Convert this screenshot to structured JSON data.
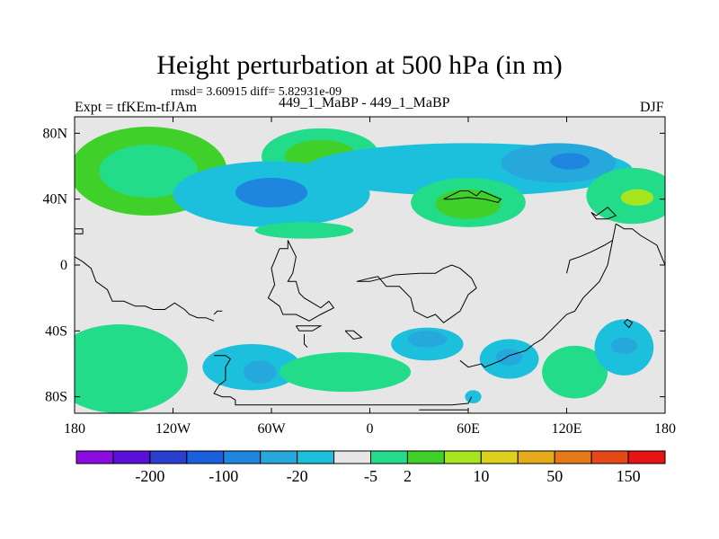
{
  "title": "Height perturbation at 500 hPa (in m)",
  "stats": "rmsd= 3.60915 diff= 5.82931e-09",
  "left_label": "Expt = tfKEm-tfJAm",
  "center_label": "449_1_MaBP - 449_1_MaBP",
  "right_label": "DJF",
  "chart_data": {
    "type": "heatmap",
    "projection": "cylindrical-equidistant",
    "xlim": [
      -180,
      180
    ],
    "ylim": [
      -90,
      90
    ],
    "x_ticks": [
      {
        "value": -180,
        "label": "180"
      },
      {
        "value": -120,
        "label": "120W"
      },
      {
        "value": -60,
        "label": "60W"
      },
      {
        "value": 0,
        "label": "0"
      },
      {
        "value": 60,
        "label": "60E"
      },
      {
        "value": 120,
        "label": "120E"
      },
      {
        "value": 180,
        "label": "180"
      }
    ],
    "y_ticks": [
      {
        "value": 80,
        "label": "80N"
      },
      {
        "value": 40,
        "label": "40N"
      },
      {
        "value": 0,
        "label": "0"
      },
      {
        "value": -40,
        "label": "40S"
      },
      {
        "value": -80,
        "label": "80S"
      }
    ],
    "background_color": "#e6e6e6",
    "colorbar": {
      "colors": [
        "#8a0ce0",
        "#5a10d8",
        "#2a3fcf",
        "#1a60dc",
        "#1f86e0",
        "#26a8dc",
        "#1cc0dc",
        "#e6e6e6",
        "#22dc8a",
        "#40d02a",
        "#a6e61e",
        "#dcd21e",
        "#e6aa1a",
        "#e67818",
        "#e64818",
        "#e61414"
      ],
      "labels": [
        {
          "after_box": 2,
          "text": "-200"
        },
        {
          "after_box": 4,
          "text": "-100"
        },
        {
          "after_box": 6,
          "text": "-20"
        },
        {
          "after_box": 8,
          "text": "-5"
        },
        {
          "after_box": 9,
          "text": "2"
        },
        {
          "after_box": 11,
          "text": "10"
        },
        {
          "after_box": 13,
          "text": "50"
        },
        {
          "after_box": 15,
          "text": "150"
        }
      ]
    },
    "anomalies": [
      {
        "lon": -135,
        "lat": 57,
        "rlon": 48,
        "rlat": 27,
        "level": 2
      },
      {
        "lon": -135,
        "lat": 57,
        "rlon": 30,
        "rlat": 16,
        "level": 1
      },
      {
        "lon": -30,
        "lat": 66,
        "rlon": 36,
        "rlat": 17,
        "level": 1
      },
      {
        "lon": -30,
        "lat": 66,
        "rlon": 22,
        "rlat": 10,
        "level": 2
      },
      {
        "lon": -60,
        "lat": 43,
        "rlon": 60,
        "rlat": 20,
        "level": -1
      },
      {
        "lon": -60,
        "lat": 44,
        "rlon": 22,
        "rlat": 9,
        "level": -3
      },
      {
        "lon": 60,
        "lat": 58,
        "rlon": 100,
        "rlat": 16,
        "level": -1
      },
      {
        "lon": 115,
        "lat": 62,
        "rlon": 35,
        "rlat": 12,
        "level": -2
      },
      {
        "lon": 122,
        "lat": 63,
        "rlon": 12,
        "rlat": 5,
        "level": -3
      },
      {
        "lon": 60,
        "lat": 38,
        "rlon": 35,
        "rlat": 15,
        "level": 1
      },
      {
        "lon": 60,
        "lat": 37,
        "rlon": 20,
        "rlat": 9,
        "level": 2
      },
      {
        "lon": 160,
        "lat": 42,
        "rlon": 28,
        "rlat": 17,
        "level": 1
      },
      {
        "lon": 163,
        "lat": 41,
        "rlon": 10,
        "rlat": 5,
        "level": 3
      },
      {
        "lon": -40,
        "lat": 21,
        "rlon": 30,
        "rlat": 5,
        "level": 1
      },
      {
        "lon": -153,
        "lat": -63,
        "rlon": 42,
        "rlat": 27,
        "level": 1
      },
      {
        "lon": -72,
        "lat": -62,
        "rlon": 30,
        "rlat": 14,
        "level": -1
      },
      {
        "lon": -67,
        "lat": -65,
        "rlon": 10,
        "rlat": 7,
        "level": -2
      },
      {
        "lon": 35,
        "lat": -48,
        "rlon": 22,
        "rlat": 10,
        "level": -1
      },
      {
        "lon": 35,
        "lat": -45,
        "rlon": 12,
        "rlat": 5,
        "level": -2
      },
      {
        "lon": -15,
        "lat": -65,
        "rlon": 40,
        "rlat": 12,
        "level": 1
      },
      {
        "lon": 85,
        "lat": -57,
        "rlon": 18,
        "rlat": 12,
        "level": -1
      },
      {
        "lon": 85,
        "lat": -56,
        "rlon": 8,
        "rlat": 5,
        "level": -2
      },
      {
        "lon": 125,
        "lat": -65,
        "rlon": 20,
        "rlat": 16,
        "level": 1
      },
      {
        "lon": 155,
        "lat": -50,
        "rlon": 18,
        "rlat": 17,
        "level": -1
      },
      {
        "lon": 155,
        "lat": -49,
        "rlon": 8,
        "rlat": 5,
        "level": -2
      },
      {
        "lon": 63,
        "lat": -80,
        "rlon": 5,
        "rlat": 4,
        "level": -1
      }
    ],
    "coastline": [
      [
        [
          -180,
          22
        ],
        [
          -175,
          22
        ],
        [
          -175,
          19
        ],
        [
          -180,
          19
        ]
      ],
      [
        [
          -180,
          5
        ],
        [
          -175,
          2
        ],
        [
          -170,
          -2
        ],
        [
          -167,
          -10
        ],
        [
          -160,
          -15
        ],
        [
          -157,
          -22
        ],
        [
          -150,
          -22
        ],
        [
          -143,
          -25
        ],
        [
          -137,
          -25
        ],
        [
          -132,
          -27
        ],
        [
          -125,
          -27
        ],
        [
          -119,
          -23
        ],
        [
          -113,
          -27
        ],
        [
          -110,
          -30
        ],
        [
          -105,
          -32
        ],
        [
          -100,
          -32
        ],
        [
          -95,
          -34
        ]
      ],
      [
        [
          -95,
          -55
        ],
        [
          -88,
          -55
        ],
        [
          -85,
          -57
        ],
        [
          -88,
          -62
        ],
        [
          -88,
          -70
        ],
        [
          -92,
          -73
        ],
        [
          -95,
          -78
        ],
        [
          -90,
          -80
        ],
        [
          -85,
          -80
        ],
        [
          -82,
          -82
        ],
        [
          -82,
          -85
        ],
        [
          -78,
          -85
        ],
        [
          -70,
          -85
        ],
        [
          -50,
          -85
        ],
        [
          -10,
          -85
        ],
        [
          20,
          -85
        ],
        [
          50,
          -85
        ],
        [
          60,
          -84
        ],
        [
          62,
          -80
        ]
      ],
      [
        [
          -95,
          -30
        ],
        [
          -93,
          -28
        ],
        [
          -90,
          -28
        ]
      ],
      [
        [
          -55,
          10
        ],
        [
          -50,
          10
        ],
        [
          -50,
          15
        ],
        [
          -45,
          5
        ],
        [
          -47,
          -5
        ],
        [
          -50,
          -10
        ],
        [
          -45,
          -10
        ],
        [
          -43,
          -17
        ],
        [
          -40,
          -20
        ],
        [
          -30,
          -26
        ],
        [
          -25,
          -22
        ],
        [
          -22,
          -26
        ],
        [
          -30,
          -30
        ],
        [
          -37,
          -34
        ],
        [
          -45,
          -30
        ],
        [
          -53,
          -30
        ],
        [
          -55,
          -25
        ],
        [
          -62,
          -20
        ],
        [
          -58,
          -12
        ],
        [
          -60,
          -2
        ],
        [
          -55,
          10
        ]
      ],
      [
        [
          -8,
          -10
        ],
        [
          0,
          -8
        ],
        [
          5,
          -7
        ],
        [
          10,
          -13
        ],
        [
          18,
          -13
        ],
        [
          25,
          -20
        ],
        [
          27,
          -28
        ],
        [
          35,
          -32
        ],
        [
          40,
          -30
        ],
        [
          45,
          -35
        ],
        [
          55,
          -28
        ],
        [
          60,
          -18
        ],
        [
          65,
          -14
        ],
        [
          62,
          -8
        ],
        [
          55,
          -2
        ],
        [
          50,
          0
        ],
        [
          45,
          -2
        ],
        [
          40,
          -5
        ],
        [
          30,
          -5
        ],
        [
          15,
          -6
        ],
        [
          8,
          -8
        ],
        [
          0,
          -10
        ],
        [
          -8,
          -10
        ]
      ],
      [
        [
          -45,
          -37
        ],
        [
          -43,
          -40
        ],
        [
          -35,
          -40
        ],
        [
          -30,
          -37
        ],
        [
          -40,
          -37
        ],
        [
          -45,
          -37
        ]
      ],
      [
        [
          -15,
          -40
        ],
        [
          -10,
          -45
        ],
        [
          -5,
          -44
        ],
        [
          -10,
          -40
        ],
        [
          -15,
          -40
        ]
      ],
      [
        [
          45,
          40
        ],
        [
          55,
          45
        ],
        [
          60,
          45
        ],
        [
          65,
          42
        ],
        [
          68,
          45
        ],
        [
          75,
          42
        ],
        [
          80,
          40
        ],
        [
          78,
          38
        ],
        [
          70,
          40
        ],
        [
          60,
          41
        ],
        [
          50,
          40
        ],
        [
          45,
          40
        ]
      ],
      [
        [
          135,
          32
        ],
        [
          138,
          30
        ],
        [
          145,
          35
        ],
        [
          150,
          30
        ],
        [
          145,
          28
        ],
        [
          138,
          28
        ],
        [
          135,
          32
        ]
      ],
      [
        [
          150,
          25
        ],
        [
          155,
          22
        ],
        [
          160,
          22
        ],
        [
          165,
          18
        ],
        [
          170,
          15
        ],
        [
          175,
          12
        ],
        [
          180,
          0
        ]
      ],
      [
        [
          150,
          25
        ],
        [
          148,
          15
        ],
        [
          145,
          0
        ],
        [
          140,
          -10
        ],
        [
          135,
          -15
        ],
        [
          130,
          -20
        ],
        [
          125,
          -28
        ],
        [
          120,
          -30
        ],
        [
          115,
          -35
        ],
        [
          110,
          -40
        ],
        [
          105,
          -45
        ],
        [
          100,
          -48
        ],
        [
          95,
          -52
        ],
        [
          85,
          -55
        ],
        [
          80,
          -58
        ],
        [
          75,
          -60
        ],
        [
          70,
          -62
        ],
        [
          68,
          -60
        ],
        [
          60,
          -62
        ],
        [
          55,
          -58
        ]
      ],
      [
        [
          148,
          15
        ],
        [
          143,
          12
        ],
        [
          139,
          10
        ],
        [
          135,
          8
        ],
        [
          128,
          5
        ],
        [
          122,
          3
        ],
        [
          120,
          -5
        ]
      ],
      [
        [
          -40,
          -42
        ],
        [
          -40,
          -48
        ],
        [
          -38,
          -50
        ]
      ],
      [
        [
          30,
          -88
        ],
        [
          60,
          -88
        ]
      ],
      [
        [
          155,
          -35
        ],
        [
          158,
          -38
        ],
        [
          160,
          -35
        ],
        [
          157,
          -33
        ],
        [
          155,
          -35
        ]
      ]
    ]
  }
}
